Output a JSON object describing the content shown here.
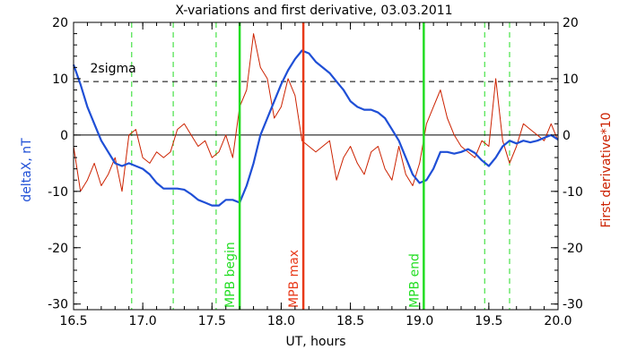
{
  "chart_data": {
    "type": "line",
    "title": "X-variations and first derivative, 03.03.2011",
    "xlabel": "UT, hours",
    "ylabel_left": "deltaX, nT",
    "ylabel_right": "First derivative*10",
    "xlim": [
      16.5,
      20.0
    ],
    "ylim": [
      -31,
      20
    ],
    "x_ticks": [
      "16.5",
      "17.0",
      "17.5",
      "18.0",
      "18.5",
      "19.0",
      "19.5",
      "20.0"
    ],
    "x_tick_values": [
      16.5,
      17.0,
      17.5,
      18.0,
      18.5,
      19.0,
      19.5,
      20.0
    ],
    "y_ticks": [
      "-30",
      "-20",
      "-10",
      "0",
      "10",
      "20"
    ],
    "y_tick_values": [
      -30,
      -20,
      -10,
      0,
      10,
      20
    ],
    "colors": {
      "deltaX": "#1f4fd6",
      "derivative": "#cc2200",
      "mpb_begin_end": "#22dd22",
      "mpb_max": "#e83a1a",
      "axes": "#000000"
    },
    "series": [
      {
        "key": "deltaX",
        "x": [
          16.5,
          16.55,
          16.6,
          16.65,
          16.7,
          16.75,
          16.8,
          16.85,
          16.9,
          16.95,
          17.0,
          17.05,
          17.1,
          17.15,
          17.2,
          17.25,
          17.3,
          17.35,
          17.4,
          17.45,
          17.5,
          17.55,
          17.6,
          17.65,
          17.7,
          17.75,
          17.8,
          17.85,
          17.9,
          17.95,
          18.0,
          18.05,
          18.1,
          18.15,
          18.2,
          18.25,
          18.3,
          18.35,
          18.4,
          18.45,
          18.5,
          18.55,
          18.6,
          18.65,
          18.7,
          18.75,
          18.8,
          18.85,
          18.9,
          18.95,
          19.0,
          19.05,
          19.1,
          19.15,
          19.2,
          19.25,
          19.3,
          19.35,
          19.4,
          19.45,
          19.5,
          19.55,
          19.6,
          19.65,
          19.7,
          19.75,
          19.8,
          19.85,
          19.9,
          19.95,
          20.0
        ],
        "y": [
          12.5,
          9,
          5,
          2,
          -1,
          -3,
          -5,
          -5.5,
          -5,
          -5.5,
          -6,
          -7,
          -8.5,
          -9.5,
          -9.5,
          -9.5,
          -9.7,
          -10.5,
          -11.5,
          -12,
          -12.5,
          -12.5,
          -11.5,
          -11.5,
          -12,
          -9,
          -5,
          0,
          3,
          6,
          9,
          11.5,
          13.5,
          15,
          14.5,
          13,
          12,
          11,
          9.5,
          8,
          6,
          5,
          4.5,
          4.5,
          4,
          3,
          1,
          -1,
          -4,
          -7,
          -8.5,
          -8,
          -6,
          -3,
          -3,
          -3.3,
          -3,
          -2.5,
          -3.2,
          -4.5,
          -5.5,
          -4,
          -2,
          -1,
          -1.5,
          -1,
          -1.3,
          -1,
          -0.5,
          0,
          -0.8
        ]
      },
      {
        "key": "derivative",
        "x": [
          16.5,
          16.55,
          16.6,
          16.65,
          16.7,
          16.75,
          16.8,
          16.85,
          16.9,
          16.95,
          17.0,
          17.05,
          17.1,
          17.15,
          17.2,
          17.25,
          17.3,
          17.35,
          17.4,
          17.45,
          17.5,
          17.55,
          17.6,
          17.65,
          17.7,
          17.75,
          17.8,
          17.85,
          17.9,
          17.95,
          18.0,
          18.05,
          18.1,
          18.15,
          18.2,
          18.25,
          18.3,
          18.35,
          18.4,
          18.45,
          18.5,
          18.55,
          18.6,
          18.65,
          18.7,
          18.75,
          18.8,
          18.85,
          18.9,
          18.95,
          19.0,
          19.05,
          19.1,
          19.15,
          19.2,
          19.25,
          19.3,
          19.35,
          19.4,
          19.45,
          19.5,
          19.55,
          19.6,
          19.65,
          19.7,
          19.75,
          19.8,
          19.85,
          19.9,
          19.95,
          20.0
        ],
        "y": [
          -2,
          -10,
          -8,
          -5,
          -9,
          -7,
          -4,
          -10,
          0,
          1,
          -4,
          -5,
          -3,
          -4,
          -3,
          1,
          2,
          0,
          -2,
          -1,
          -4,
          -3,
          0,
          -4,
          5,
          8,
          18,
          12,
          10,
          3,
          5,
          10,
          7,
          -1,
          -2,
          -3,
          -2,
          -1,
          -8,
          -4,
          -2,
          -5,
          -7,
          -3,
          -2,
          -6,
          -8,
          -2,
          -7,
          -9,
          -5,
          2,
          5,
          8,
          3,
          0,
          -2,
          -3,
          -4,
          -1,
          -2,
          10,
          -1,
          -5,
          -2,
          2,
          1,
          0,
          -1,
          2,
          -1
        ]
      }
    ],
    "threshold": {
      "y": 9.5,
      "label": "2sigma"
    },
    "dashed_markers_x": [
      16.92,
      17.22,
      17.53,
      19.47,
      19.65
    ],
    "vertical_markers": [
      {
        "x": 17.7,
        "label": "MPB begin",
        "color": "#22dd22"
      },
      {
        "x": 18.16,
        "label": "MPB max",
        "color": "#e83a1a"
      },
      {
        "x": 19.03,
        "label": "MPB end",
        "color": "#22dd22"
      }
    ],
    "grid": false
  }
}
